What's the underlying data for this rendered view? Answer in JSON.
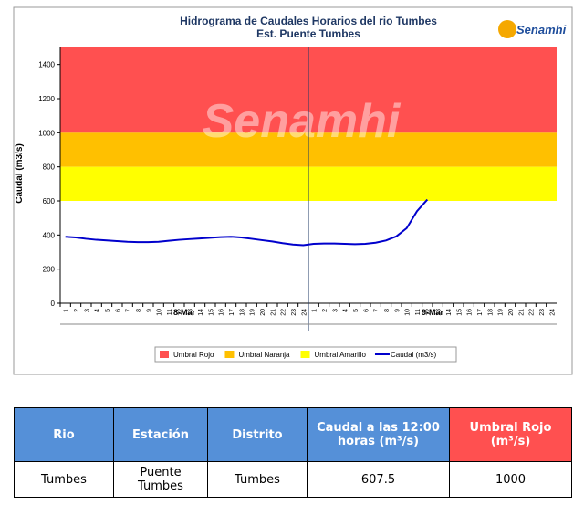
{
  "chart_data": {
    "type": "line",
    "title": "Hidrograma de Caudales Horarios del rio Tumbes",
    "subtitle": "Est. Puente Tumbes",
    "logo": "Senamhi",
    "y_label": "Caudal  (m3/s)",
    "ylim": [
      0,
      1500
    ],
    "yticks": [
      0,
      200,
      400,
      600,
      800,
      1000,
      1200,
      1400
    ],
    "groups": [
      "8-Mar",
      "9-Mar"
    ],
    "categories": [
      "1",
      "2",
      "3",
      "4",
      "5",
      "6",
      "7",
      "8",
      "9",
      "10",
      "11",
      "12",
      "13",
      "14",
      "15",
      "16",
      "17",
      "18",
      "19",
      "20",
      "21",
      "22",
      "23",
      "24",
      "1",
      "2",
      "3",
      "4",
      "5",
      "6",
      "7",
      "8",
      "9",
      "10",
      "11",
      "12",
      "13",
      "14",
      "15",
      "16",
      "17",
      "18",
      "19",
      "20",
      "21",
      "22",
      "23",
      "24"
    ],
    "thresholds": [
      {
        "name": "Umbral Rojo",
        "color": "#ff5050",
        "from": 1000,
        "to": 1500
      },
      {
        "name": "Umbral Naranja",
        "color": "#ffc000",
        "from": 800,
        "to": 1000
      },
      {
        "name": "Umbral Amarillo",
        "color": "#ffff00",
        "from": 600,
        "to": 800
      }
    ],
    "series": [
      {
        "name": "Caudal (m3/s)",
        "color": "#0000cc",
        "values": [
          390,
          386,
          378,
          372,
          368,
          364,
          360,
          358,
          358,
          360,
          366,
          372,
          376,
          380,
          384,
          388,
          390,
          386,
          378,
          370,
          362,
          352,
          344,
          340,
          348,
          350,
          350,
          348,
          346,
          348,
          355,
          368,
          392,
          440,
          540,
          607.5,
          null,
          null,
          null,
          null,
          null,
          null,
          null,
          null,
          null,
          null,
          null,
          null
        ]
      }
    ]
  },
  "table": {
    "headers": [
      "Rio",
      "Estación",
      "Distrito",
      "Caudal a las 12:00 horas (m³/s)",
      "Umbral Rojo (m³/s)"
    ],
    "rows": [
      [
        "Tumbes",
        "Puente Tumbes",
        "Tumbes",
        "607.5",
        "1000"
      ]
    ]
  }
}
